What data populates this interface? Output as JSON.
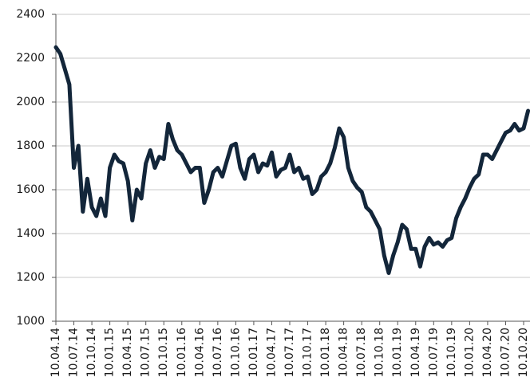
{
  "chart_data": {
    "type": "line",
    "color": "#13263a",
    "grid": true,
    "ylim": [
      1000,
      2400
    ],
    "yticks": [
      1000,
      1200,
      1400,
      1600,
      1800,
      2000,
      2200,
      2400
    ],
    "categories": [
      "10.04.14",
      null,
      null,
      null,
      "10.07.14",
      null,
      null,
      null,
      "10.10.14",
      null,
      null,
      null,
      "10.01.15",
      null,
      null,
      null,
      "10.04.15",
      null,
      null,
      null,
      "10.07.15",
      null,
      null,
      null,
      "10.10.15",
      null,
      null,
      null,
      "10.01.16",
      null,
      null,
      null,
      "10.04.16",
      null,
      null,
      null,
      "10.07.16",
      null,
      null,
      null,
      "10.10.16",
      null,
      null,
      null,
      "10.01.17",
      null,
      null,
      null,
      "10.04.17",
      null,
      null,
      null,
      "10.07.17",
      null,
      null,
      null,
      "10.10.17",
      null,
      null,
      null,
      "10.01.18",
      null,
      null,
      null,
      "10.04.18",
      null,
      null,
      null,
      "10.07.18",
      null,
      null,
      null,
      "10.10.18",
      null,
      null,
      null,
      "10.01.19",
      null,
      null,
      null,
      "10.04.19",
      null,
      null,
      null,
      "10.07.19",
      null,
      null,
      null,
      "10.10.19",
      null,
      null,
      null,
      "10.01.20",
      null,
      null,
      null,
      "10.04.20",
      null,
      null,
      null,
      "10.07.20",
      null,
      null,
      null,
      "10.10.20",
      null
    ],
    "values": [
      2250,
      2220,
      2150,
      2080,
      1700,
      1800,
      1500,
      1650,
      1520,
      1480,
      1560,
      1480,
      1700,
      1760,
      1730,
      1720,
      1640,
      1460,
      1600,
      1560,
      1720,
      1780,
      1700,
      1750,
      1740,
      1900,
      1830,
      1780,
      1760,
      1720,
      1680,
      1700,
      1700,
      1540,
      1600,
      1680,
      1700,
      1660,
      1730,
      1800,
      1810,
      1700,
      1650,
      1740,
      1760,
      1680,
      1720,
      1710,
      1770,
      1660,
      1690,
      1700,
      1760,
      1680,
      1700,
      1650,
      1660,
      1580,
      1600,
      1660,
      1680,
      1720,
      1790,
      1880,
      1840,
      1700,
      1640,
      1610,
      1590,
      1520,
      1500,
      1460,
      1420,
      1300,
      1220,
      1300,
      1360,
      1440,
      1420,
      1330,
      1330,
      1250,
      1340,
      1380,
      1350,
      1360,
      1340,
      1370,
      1380,
      1470,
      1520,
      1560,
      1610,
      1650,
      1670,
      1760,
      1760,
      1740,
      1780,
      1820,
      1860,
      1870,
      1900,
      1870,
      1880,
      1960
    ]
  }
}
